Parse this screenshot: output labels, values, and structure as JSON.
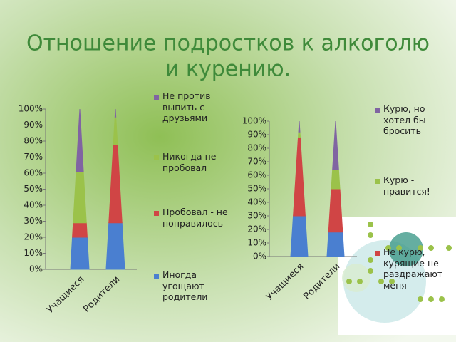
{
  "title": [
    "Отношение подростков к алкоголю",
    "и курению."
  ],
  "chart_data": [
    {
      "type": "cone-stacked",
      "categories": [
        "Учащиеся",
        "Родители"
      ],
      "ylim": [
        0,
        100
      ],
      "yticks": [
        {
          "value": 0,
          "label": "0%"
        },
        {
          "value": 10,
          "label": "10%"
        },
        {
          "value": 20,
          "label": "20%"
        },
        {
          "value": 30,
          "label": "30%"
        },
        {
          "value": 40,
          "label": "40%"
        },
        {
          "value": 50,
          "label": "50%"
        },
        {
          "value": 60,
          "label": "60%"
        },
        {
          "value": 70,
          "label": "70%"
        },
        {
          "value": 80,
          "label": "80%"
        },
        {
          "value": 90,
          "label": "90%"
        },
        {
          "value": 100,
          "label": "100%"
        }
      ],
      "series": [
        {
          "name": "Иногда угощают родители",
          "color": "#4a7fd0",
          "values": [
            20,
            29
          ]
        },
        {
          "name": "Пробовал - не понравилось",
          "color": "#d04545",
          "values": [
            9,
            49
          ]
        },
        {
          "name": "Никогда не пробовал",
          "color": "#9bc24a",
          "values": [
            32,
            17
          ]
        },
        {
          "name": "Не против выпить с друзьями",
          "color": "#8064a2",
          "values": [
            39,
            5
          ]
        }
      ]
    },
    {
      "type": "cone-stacked",
      "categories": [
        "Учащиеся",
        "Родители"
      ],
      "ylim": [
        0,
        100
      ],
      "yticks": [
        {
          "value": 0,
          "label": "0%"
        },
        {
          "value": 10,
          "label": "10%"
        },
        {
          "value": 20,
          "label": "20%"
        },
        {
          "value": 30,
          "label": "30%"
        },
        {
          "value": 40,
          "label": "40%"
        },
        {
          "value": 50,
          "label": "50%"
        },
        {
          "value": 60,
          "label": "60%"
        },
        {
          "value": 70,
          "label": "70%"
        },
        {
          "value": 80,
          "label": "80%"
        },
        {
          "value": 90,
          "label": "90%"
        },
        {
          "value": 100,
          "label": "100%"
        }
      ],
      "series": [
        {
          "name": null,
          "color": "#4a7fd0",
          "values": [
            30,
            18
          ]
        },
        {
          "name": "Не курю, курящие не раздражают меня",
          "color": "#d04545",
          "values": [
            58,
            32
          ]
        },
        {
          "name": "Курю - нравится!",
          "color": "#9bc24a",
          "values": [
            4,
            14
          ]
        },
        {
          "name": "Курю, но хотел бы бросить",
          "color": "#8064a2",
          "values": [
            8,
            36
          ]
        }
      ]
    }
  ]
}
